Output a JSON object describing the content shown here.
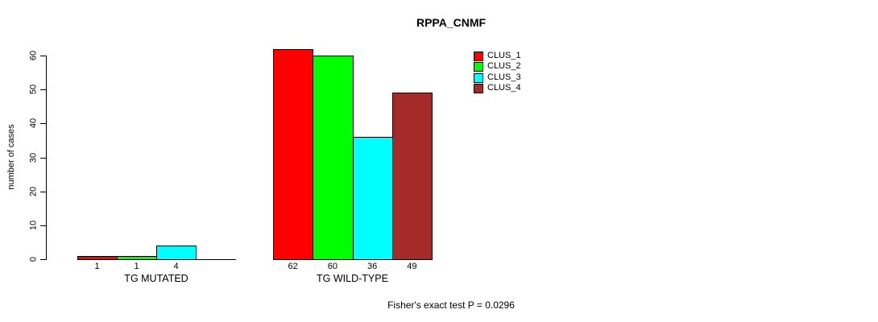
{
  "chart_data": {
    "type": "bar",
    "title": "RPPA_CNMF",
    "ylabel": "number of cases",
    "xlabel": "",
    "ylim": [
      0,
      62
    ],
    "yticks": [
      0,
      10,
      20,
      30,
      40,
      50,
      60
    ],
    "grid": false,
    "legend": {
      "position": "top-right",
      "entries": [
        {
          "name": "CLUS_1",
          "color": "#FF0000"
        },
        {
          "name": "CLUS_2",
          "color": "#00FF00"
        },
        {
          "name": "CLUS_3",
          "color": "#00FFFF"
        },
        {
          "name": "CLUS_4",
          "color": "#A52A2A"
        }
      ]
    },
    "groups": [
      {
        "label": "TG MUTATED",
        "bars": [
          {
            "cluster": "CLUS_1",
            "value": 1,
            "label": "1"
          },
          {
            "cluster": "CLUS_2",
            "value": 1,
            "label": "1"
          },
          {
            "cluster": "CLUS_3",
            "value": 4,
            "label": "4"
          },
          {
            "cluster": "CLUS_4",
            "value": 0,
            "label": ""
          }
        ]
      },
      {
        "label": "TG WILD-TYPE",
        "bars": [
          {
            "cluster": "CLUS_1",
            "value": 62,
            "label": "62"
          },
          {
            "cluster": "CLUS_2",
            "value": 60,
            "label": "60"
          },
          {
            "cluster": "CLUS_3",
            "value": 36,
            "label": "36"
          },
          {
            "cluster": "CLUS_4",
            "value": 49,
            "label": "49"
          }
        ]
      }
    ],
    "footnote": "Fisher's exact test P = 0.0296",
    "colors": {
      "bar_border": "#000000",
      "axis": "#000000",
      "text": "#000000",
      "background": "#FFFFFF"
    }
  }
}
